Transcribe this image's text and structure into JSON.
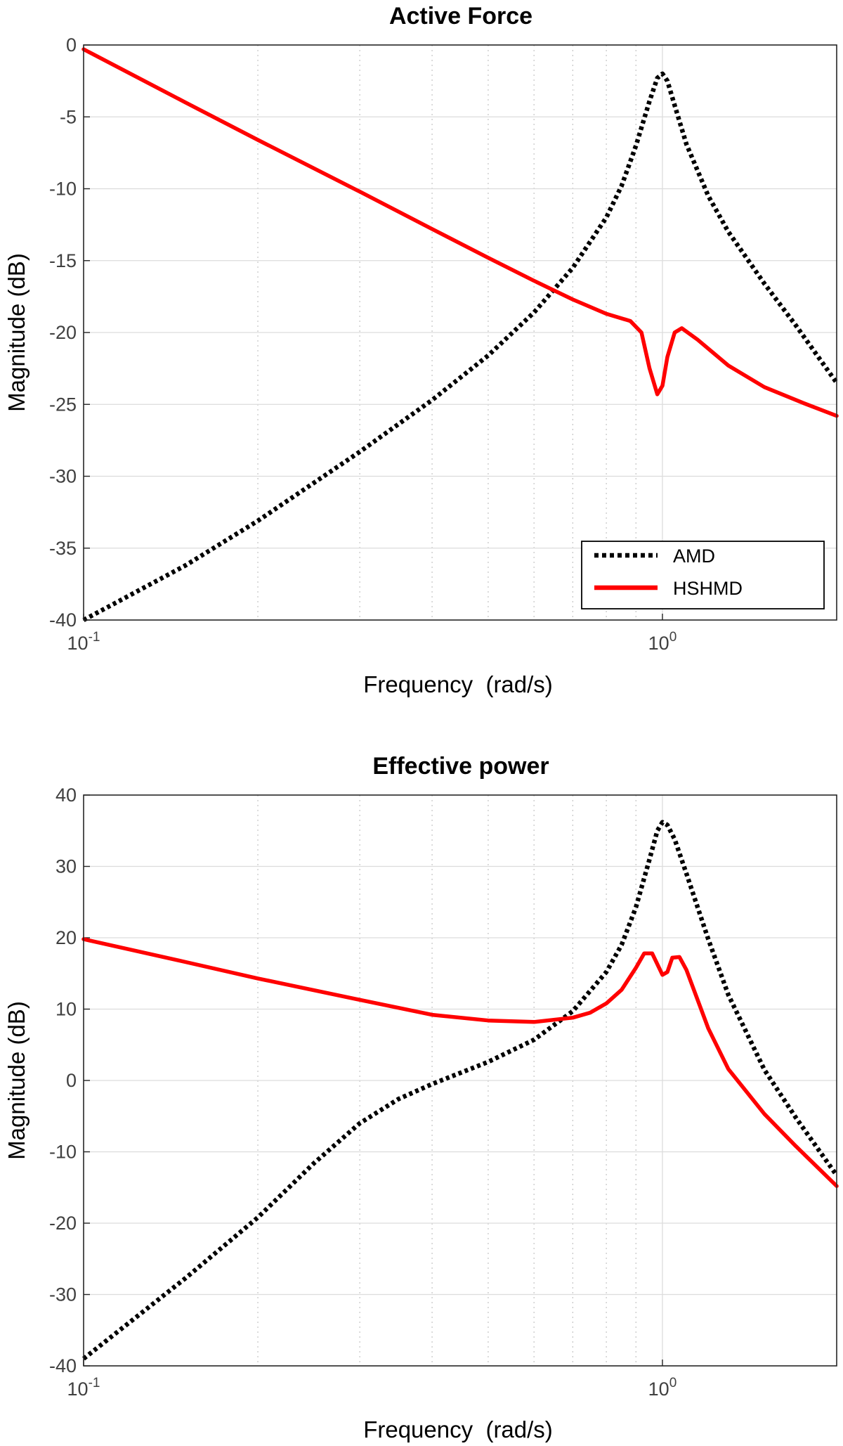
{
  "chart_data": [
    {
      "type": "line",
      "title": "Active Force",
      "xlabel": "Frequency  (rad/s)",
      "ylabel": "Magnitude (dB)",
      "xscale": "log",
      "xlim": [
        0.1,
        2
      ],
      "ylim": [
        -40,
        0
      ],
      "grid": true,
      "yticks": [
        "0",
        "-5",
        "-10",
        "-15",
        "-20",
        "-25",
        "-30",
        "-35",
        "-40"
      ],
      "ytick_values": [
        0,
        -5,
        -10,
        -15,
        -20,
        -25,
        -30,
        -35,
        -40
      ],
      "xticks": [
        {
          "base": "10",
          "exp": "-1",
          "value": 0.1
        },
        {
          "base": "10",
          "exp": "0",
          "value": 1
        }
      ],
      "legend": {
        "placement": "bottom-right",
        "entries": [
          "AMD",
          "HSHMD"
        ]
      },
      "series": [
        {
          "name": "AMD",
          "color": "#000000",
          "style": "dotted",
          "x": [
            0.1,
            0.15,
            0.2,
            0.3,
            0.4,
            0.5,
            0.6,
            0.7,
            0.8,
            0.85,
            0.9,
            0.95,
            0.98,
            1.0,
            1.02,
            1.05,
            1.1,
            1.2,
            1.3,
            1.5,
            1.7,
            2.0
          ],
          "y": [
            -40,
            -36.2,
            -33.1,
            -28.3,
            -24.7,
            -21.6,
            -18.6,
            -15.5,
            -12.0,
            -9.8,
            -7.0,
            -3.9,
            -2.3,
            -2.0,
            -2.5,
            -4.2,
            -6.9,
            -10.5,
            -13.0,
            -16.6,
            -19.5,
            -23.5
          ]
        },
        {
          "name": "HSHMD",
          "color": "#ff0000",
          "style": "solid",
          "x": [
            0.1,
            0.15,
            0.2,
            0.3,
            0.4,
            0.5,
            0.6,
            0.7,
            0.8,
            0.88,
            0.92,
            0.95,
            0.98,
            1.0,
            1.02,
            1.05,
            1.08,
            1.15,
            1.3,
            1.5,
            1.75,
            2.0
          ],
          "y": [
            -0.3,
            -4.0,
            -6.6,
            -10.2,
            -12.8,
            -14.8,
            -16.4,
            -17.7,
            -18.7,
            -19.2,
            -20.0,
            -22.5,
            -24.3,
            -23.7,
            -21.7,
            -20.0,
            -19.7,
            -20.5,
            -22.3,
            -23.8,
            -24.9,
            -25.8
          ]
        }
      ]
    },
    {
      "type": "line",
      "title": "Effective power",
      "xlabel": "Frequency  (rad/s)",
      "ylabel": "Magnitude (dB)",
      "xscale": "log",
      "xlim": [
        0.1,
        2
      ],
      "ylim": [
        -40,
        40
      ],
      "grid": true,
      "yticks": [
        "40",
        "30",
        "20",
        "10",
        "0",
        "-10",
        "-20",
        "-30",
        "-40"
      ],
      "ytick_values": [
        40,
        30,
        20,
        10,
        0,
        -10,
        -20,
        -30,
        -40
      ],
      "xticks": [
        {
          "base": "10",
          "exp": "-1",
          "value": 0.1
        },
        {
          "base": "10",
          "exp": "0",
          "value": 1
        }
      ],
      "series": [
        {
          "name": "AMD",
          "color": "#000000",
          "style": "dotted",
          "x": [
            0.1,
            0.15,
            0.2,
            0.25,
            0.3,
            0.35,
            0.4,
            0.5,
            0.6,
            0.7,
            0.8,
            0.85,
            0.9,
            0.95,
            0.98,
            1.0,
            1.02,
            1.05,
            1.1,
            1.2,
            1.3,
            1.5,
            1.7,
            2.0
          ],
          "y": [
            -39,
            -27.7,
            -19.2,
            -11.6,
            -6.0,
            -2.6,
            -0.5,
            2.6,
            5.7,
            9.7,
            15.2,
            19.0,
            24.3,
            31.0,
            35.0,
            36.2,
            35.8,
            33.8,
            29.0,
            19.8,
            12.0,
            1.5,
            -5.2,
            -13.3
          ]
        },
        {
          "name": "HSHMD",
          "color": "#ff0000",
          "style": "solid",
          "x": [
            0.1,
            0.15,
            0.2,
            0.3,
            0.4,
            0.5,
            0.6,
            0.7,
            0.75,
            0.8,
            0.85,
            0.9,
            0.93,
            0.96,
            0.98,
            1.0,
            1.02,
            1.04,
            1.07,
            1.1,
            1.2,
            1.3,
            1.5,
            1.7,
            2.0
          ],
          "y": [
            19.8,
            16.6,
            14.3,
            11.3,
            9.2,
            8.4,
            8.2,
            8.8,
            9.5,
            10.8,
            12.7,
            15.8,
            17.8,
            17.8,
            16.3,
            14.8,
            15.2,
            17.2,
            17.3,
            15.5,
            7.3,
            1.6,
            -4.7,
            -9.2,
            -14.8
          ]
        }
      ]
    }
  ]
}
